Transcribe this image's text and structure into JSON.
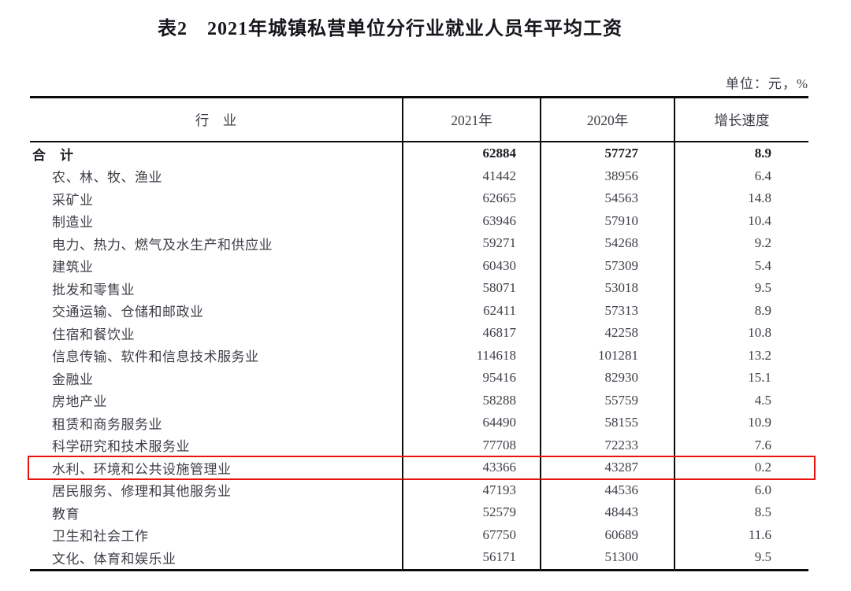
{
  "title": "表2　2021年城镇私营单位分行业就业人员年平均工资",
  "unit_note": "单位：元，%",
  "table": {
    "columns": [
      "行　业",
      "2021年",
      "2020年",
      "增长速度"
    ],
    "highlighted_row_index": 14,
    "highlight_color": "#e8140c",
    "rows": [
      {
        "industry": "合　计",
        "y2021": "62884",
        "y2020": "57727",
        "growth": "8.9",
        "bold": true,
        "indent": false
      },
      {
        "industry": "农、林、牧、渔业",
        "y2021": "41442",
        "y2020": "38956",
        "growth": "6.4",
        "bold": false,
        "indent": true
      },
      {
        "industry": "采矿业",
        "y2021": "62665",
        "y2020": "54563",
        "growth": "14.8",
        "bold": false,
        "indent": true
      },
      {
        "industry": "制造业",
        "y2021": "63946",
        "y2020": "57910",
        "growth": "10.4",
        "bold": false,
        "indent": true
      },
      {
        "industry": "电力、热力、燃气及水生产和供应业",
        "y2021": "59271",
        "y2020": "54268",
        "growth": "9.2",
        "bold": false,
        "indent": true
      },
      {
        "industry": "建筑业",
        "y2021": "60430",
        "y2020": "57309",
        "growth": "5.4",
        "bold": false,
        "indent": true
      },
      {
        "industry": "批发和零售业",
        "y2021": "58071",
        "y2020": "53018",
        "growth": "9.5",
        "bold": false,
        "indent": true
      },
      {
        "industry": "交通运输、仓储和邮政业",
        "y2021": "62411",
        "y2020": "57313",
        "growth": "8.9",
        "bold": false,
        "indent": true
      },
      {
        "industry": "住宿和餐饮业",
        "y2021": "46817",
        "y2020": "42258",
        "growth": "10.8",
        "bold": false,
        "indent": true
      },
      {
        "industry": "信息传输、软件和信息技术服务业",
        "y2021": "114618",
        "y2020": "101281",
        "growth": "13.2",
        "bold": false,
        "indent": true
      },
      {
        "industry": "金融业",
        "y2021": "95416",
        "y2020": "82930",
        "growth": "15.1",
        "bold": false,
        "indent": true
      },
      {
        "industry": "房地产业",
        "y2021": "58288",
        "y2020": "55759",
        "growth": "4.5",
        "bold": false,
        "indent": true
      },
      {
        "industry": "租赁和商务服务业",
        "y2021": "64490",
        "y2020": "58155",
        "growth": "10.9",
        "bold": false,
        "indent": true
      },
      {
        "industry": "科学研究和技术服务业",
        "y2021": "77708",
        "y2020": "72233",
        "growth": "7.6",
        "bold": false,
        "indent": true
      },
      {
        "industry": "水利、环境和公共设施管理业",
        "y2021": "43366",
        "y2020": "43287",
        "growth": "0.2",
        "bold": false,
        "indent": true
      },
      {
        "industry": "居民服务、修理和其他服务业",
        "y2021": "47193",
        "y2020": "44536",
        "growth": "6.0",
        "bold": false,
        "indent": true
      },
      {
        "industry": "教育",
        "y2021": "52579",
        "y2020": "48443",
        "growth": "8.5",
        "bold": false,
        "indent": true
      },
      {
        "industry": "卫生和社会工作",
        "y2021": "67750",
        "y2020": "60689",
        "growth": "11.6",
        "bold": false,
        "indent": true
      },
      {
        "industry": "文化、体育和娱乐业",
        "y2021": "56171",
        "y2020": "51300",
        "growth": "9.5",
        "bold": false,
        "indent": true
      }
    ]
  },
  "chart_data": {
    "type": "table",
    "title": "表2　2021年城镇私营单位分行业就业人员年平均工资",
    "unit": "单位：元，%",
    "columns": [
      "行业",
      "2021年",
      "2020年",
      "增长速度"
    ],
    "highlighted_row": "水利、环境和公共设施管理业"
  }
}
